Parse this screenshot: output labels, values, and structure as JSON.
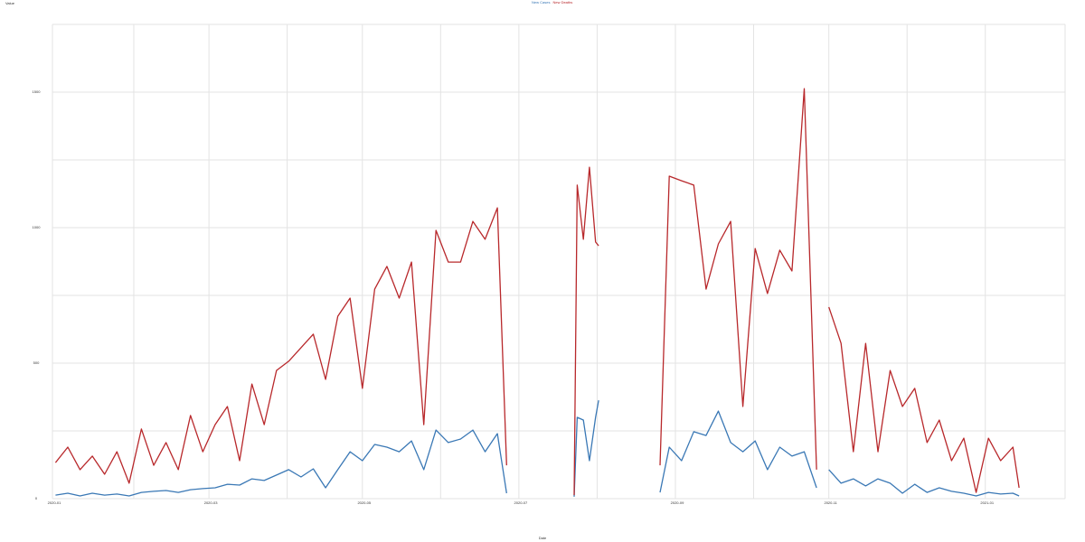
{
  "chart_data": {
    "type": "line",
    "ylabel": "Value",
    "xlabel": "Date",
    "x": [
      1,
      5,
      9,
      13,
      17,
      21,
      25,
      29,
      33,
      37,
      41,
      45,
      49,
      53,
      57,
      61,
      65,
      69,
      73,
      77,
      81,
      85,
      89,
      93,
      97,
      101,
      105,
      109,
      113,
      117,
      121,
      125,
      129,
      133,
      137,
      141,
      145,
      148,
      152,
      170,
      171,
      173,
      175,
      177,
      178,
      185,
      198,
      201,
      205,
      209,
      213,
      217,
      221,
      225,
      229,
      233,
      237,
      241,
      245,
      249,
      251,
      253,
      257,
      261,
      265,
      269,
      273,
      277,
      281,
      285,
      289,
      293,
      297,
      301,
      305,
      309,
      313,
      315
    ],
    "series": [
      {
        "name": "New Cases",
        "color": "#3a78b5",
        "values": [
          13,
          20,
          10,
          20,
          13,
          17,
          10,
          23,
          27,
          30,
          23,
          33,
          37,
          40,
          53,
          50,
          73,
          67,
          87,
          107,
          80,
          110,
          40,
          107,
          173,
          140,
          200,
          190,
          173,
          213,
          107,
          253,
          207,
          220,
          253,
          173,
          240,
          20,
          null,
          7,
          300,
          290,
          140,
          300,
          363,
          null,
          23,
          190,
          140,
          247,
          233,
          323,
          207,
          173,
          213,
          107,
          190,
          157,
          173,
          40,
          null,
          107,
          57,
          73,
          47,
          73,
          57,
          20,
          53,
          23,
          40,
          27,
          20,
          10,
          23,
          17,
          20,
          10
        ]
      },
      {
        "name": "New Deaths",
        "color": "#b8282b",
        "values": [
          133,
          190,
          107,
          157,
          90,
          173,
          57,
          257,
          123,
          207,
          107,
          307,
          173,
          273,
          340,
          140,
          423,
          273,
          473,
          507,
          557,
          607,
          440,
          673,
          740,
          407,
          773,
          857,
          740,
          873,
          273,
          990,
          873,
          873,
          1023,
          957,
          1073,
          123,
          null,
          13,
          1157,
          957,
          1223,
          947,
          933,
          null,
          123,
          1190,
          1173,
          1157,
          773,
          940,
          1023,
          340,
          923,
          757,
          917,
          840,
          1513,
          107,
          null,
          707,
          573,
          173,
          573,
          173,
          473,
          340,
          407,
          207,
          290,
          140,
          223,
          23,
          223,
          140,
          190,
          40
        ]
      }
    ],
    "xlim": [
      0,
      330
    ],
    "xticks": [
      {
        "value": 0,
        "label": "2020-01"
      },
      {
        "value": 51,
        "label": "2020-03"
      },
      {
        "value": 101,
        "label": "2020-05"
      },
      {
        "value": 152,
        "label": "2020-07"
      },
      {
        "value": 203,
        "label": "2020-09"
      },
      {
        "value": 253,
        "label": "2020-11"
      },
      {
        "value": 304,
        "label": "2021-01"
      }
    ],
    "xgrid": [
      26.5,
      76.5,
      126.5,
      177.5,
      228.5,
      278.5,
      330
    ],
    "ylim": [
      0,
      1750
    ],
    "yticks": [
      0,
      500,
      1000,
      1500
    ],
    "ygrid": [
      250,
      750,
      1250,
      1750
    ],
    "grid": true
  }
}
